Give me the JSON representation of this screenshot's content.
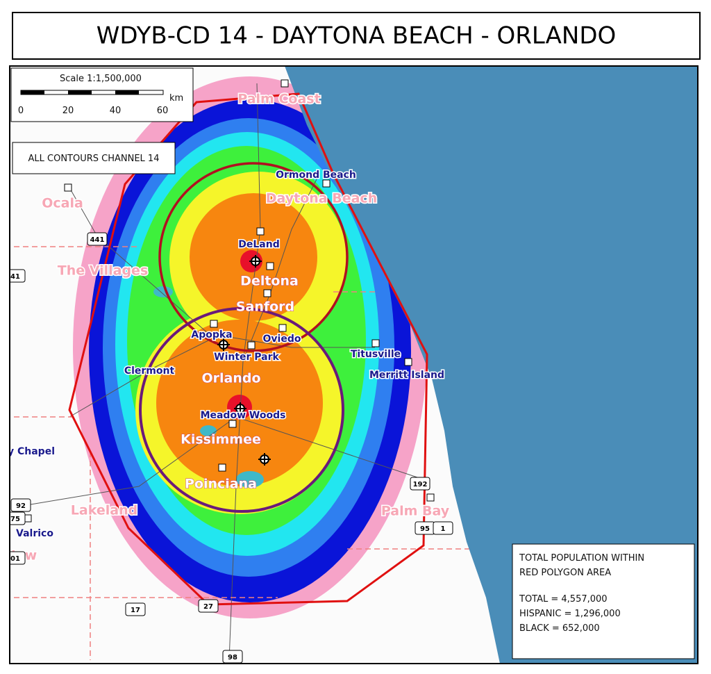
{
  "title": "WDYB-CD 14  - DAYTONA BEACH - ORLANDO",
  "scale": {
    "label": "Scale 1:1,500,000",
    "ticks": [
      "0",
      "20",
      "40",
      "60"
    ],
    "unit": "km"
  },
  "contours_label": "ALL CONTOURS CHANNEL 14",
  "cities": [
    {
      "label": "Palm Coast"
    },
    {
      "label": "Ormond Beach"
    },
    {
      "label": "Daytona Beach"
    },
    {
      "label": "Ocala"
    },
    {
      "label": "DeLand"
    },
    {
      "label": "The Villages"
    },
    {
      "label": "Deltona"
    },
    {
      "label": "Sanford"
    },
    {
      "label": "Apopka"
    },
    {
      "label": "Oviedo"
    },
    {
      "label": "Winter Park"
    },
    {
      "label": "Titusville"
    },
    {
      "label": "Clermont"
    },
    {
      "label": "Orlando"
    },
    {
      "label": "Merritt Island"
    },
    {
      "label": "Meadow Woods"
    },
    {
      "label": "Kissimmee"
    },
    {
      "label": "Poinciana"
    },
    {
      "label": "y Chapel"
    },
    {
      "label": "Lakeland"
    },
    {
      "label": "Palm Bay"
    },
    {
      "label": "Valrico"
    },
    {
      "label": "New"
    }
  ],
  "highways": [
    "441",
    "41",
    "192",
    "92",
    "75",
    "95",
    "1",
    "17",
    "27",
    "98",
    "01"
  ],
  "population": {
    "heading": [
      "TOTAL POPULATION WITHIN",
      "RED POLYGON AREA"
    ],
    "lines": [
      "TOTAL = 4,557,000",
      "HISPANIC = 1,296,000",
      "BLACK = 652,000"
    ]
  }
}
